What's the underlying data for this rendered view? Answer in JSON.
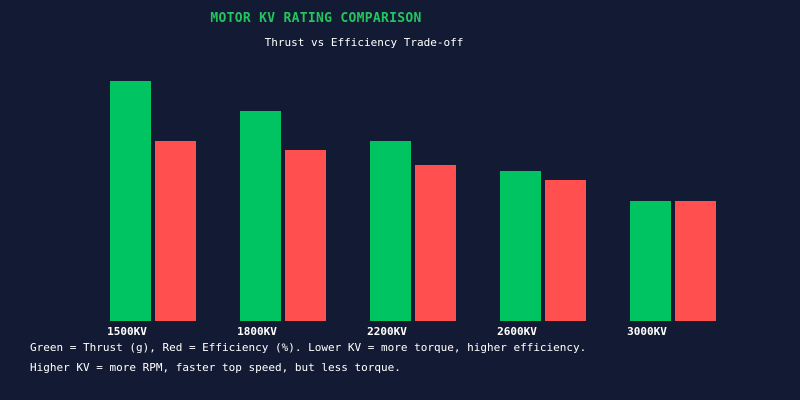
{
  "colors": {
    "background": "#131a33",
    "title": "#22c55e",
    "text": "#ffffff",
    "thrust": "#00c462",
    "efficiency": "#ff4f4f"
  },
  "chart_data": {
    "type": "bar",
    "title": "MOTOR KV RATING COMPARISON",
    "subtitle": "Thrust vs Efficiency Trade-off",
    "categories": [
      "1500KV",
      "1800KV",
      "2200KV",
      "2600KV",
      "3000KV"
    ],
    "series": [
      {
        "values": [
          80,
          70,
          60,
          50,
          40
        ],
        "color": "#00c462"
      },
      {
        "values": [
          60,
          57,
          52,
          47,
          40
        ],
        "color": "#ff4f4f"
      }
    ],
    "ylim": [
      0,
      100
    ],
    "grid": false,
    "legend": "none"
  },
  "notes": [
    "Green = Thrust (g), Red = Efficiency (%). Lower KV = more torque, higher efficiency.",
    "Higher KV = more RPM, faster top speed, but less torque."
  ]
}
